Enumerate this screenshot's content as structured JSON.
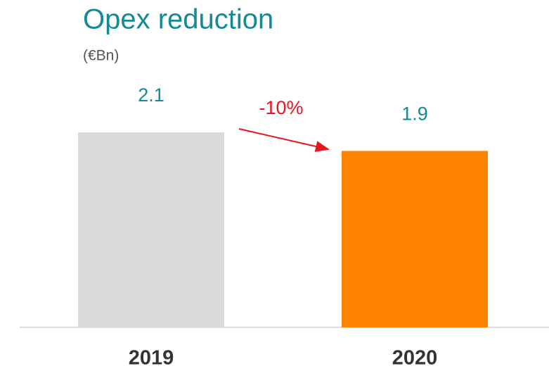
{
  "chart_data": {
    "type": "bar",
    "title": "Opex reduction",
    "subtitle": "(€Bn)",
    "categories": [
      "2019",
      "2020"
    ],
    "values": [
      2.1,
      1.9
    ],
    "colors": [
      "#d9d9d9",
      "#ff8300"
    ],
    "annotation": "-10%"
  }
}
